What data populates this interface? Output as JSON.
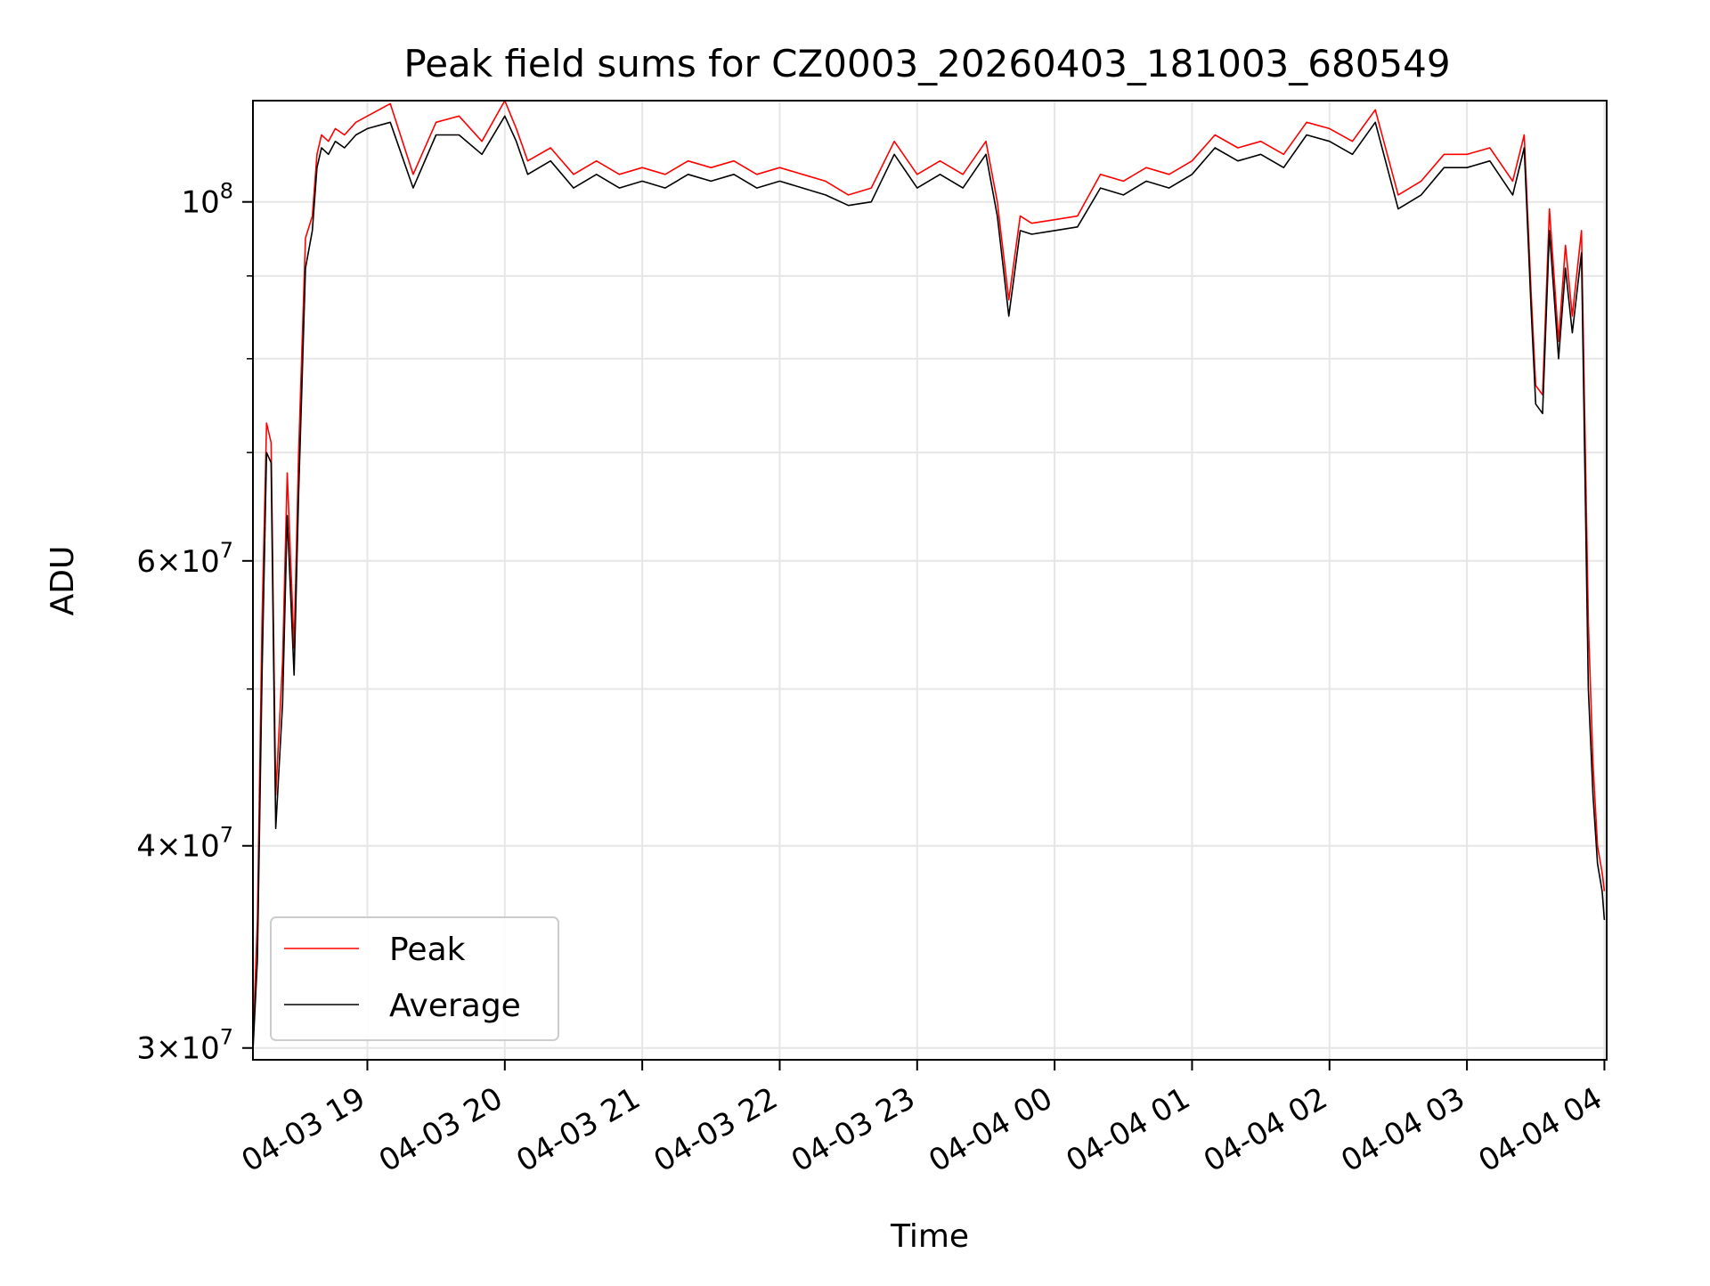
{
  "chart_data": {
    "type": "line",
    "title": "Peak field sums for CZ0003_20260403_181003_680549",
    "xlabel": "Time",
    "ylabel": "ADU",
    "yscale": "log",
    "ylim": [
      29500000,
      115500000
    ],
    "xlim": [
      "2026-04-03 18:10:03",
      "2026-04-04 04:01:00"
    ],
    "grid": true,
    "legend_position": "lower-left",
    "x_ticks": [
      {
        "t": "2026-04-03 19:00",
        "label": "04-03 19"
      },
      {
        "t": "2026-04-03 20:00",
        "label": "04-03 20"
      },
      {
        "t": "2026-04-03 21:00",
        "label": "04-03 21"
      },
      {
        "t": "2026-04-03 22:00",
        "label": "04-03 22"
      },
      {
        "t": "2026-04-03 23:00",
        "label": "04-03 23"
      },
      {
        "t": "2026-04-04 00:00",
        "label": "04-04 00"
      },
      {
        "t": "2026-04-04 01:00",
        "label": "04-04 01"
      },
      {
        "t": "2026-04-04 02:00",
        "label": "04-04 02"
      },
      {
        "t": "2026-04-04 03:00",
        "label": "04-04 03"
      },
      {
        "t": "2026-04-04 04:00",
        "label": "04-04 04"
      }
    ],
    "y_ticks": [
      {
        "value": 30000000,
        "mantissa": "3",
        "exp": "7"
      },
      {
        "value": 40000000,
        "mantissa": "4",
        "exp": "7"
      },
      {
        "value": 60000000,
        "mantissa": "6",
        "exp": "7"
      },
      {
        "value": 100000000,
        "mantissa": "",
        "exp": "8"
      }
    ],
    "y_minor_ticks": [
      50000000,
      70000000,
      80000000,
      90000000
    ],
    "series": [
      {
        "name": "Peak",
        "color": "#ff0000",
        "x": [
          "2026-04-03 18:10",
          "2026-04-03 18:12",
          "2026-04-03 18:14",
          "2026-04-03 18:16",
          "2026-04-03 18:18",
          "2026-04-03 18:20",
          "2026-04-03 18:23",
          "2026-04-03 18:25",
          "2026-04-03 18:28",
          "2026-04-03 18:30",
          "2026-04-03 18:33",
          "2026-04-03 18:36",
          "2026-04-03 18:38",
          "2026-04-03 18:40",
          "2026-04-03 18:43",
          "2026-04-03 18:46",
          "2026-04-03 18:50",
          "2026-04-03 18:55",
          "2026-04-03 19:00",
          "2026-04-03 19:10",
          "2026-04-03 19:20",
          "2026-04-03 19:30",
          "2026-04-03 19:40",
          "2026-04-03 19:50",
          "2026-04-03 20:00",
          "2026-04-03 20:05",
          "2026-04-03 20:10",
          "2026-04-03 20:20",
          "2026-04-03 20:30",
          "2026-04-03 20:40",
          "2026-04-03 20:50",
          "2026-04-03 21:00",
          "2026-04-03 21:10",
          "2026-04-03 21:20",
          "2026-04-03 21:30",
          "2026-04-03 21:40",
          "2026-04-03 21:50",
          "2026-04-03 22:00",
          "2026-04-03 22:10",
          "2026-04-03 22:20",
          "2026-04-03 22:30",
          "2026-04-03 22:40",
          "2026-04-03 22:50",
          "2026-04-03 23:00",
          "2026-04-03 23:10",
          "2026-04-03 23:20",
          "2026-04-03 23:30",
          "2026-04-03 23:35",
          "2026-04-03 23:40",
          "2026-04-03 23:45",
          "2026-04-03 23:50",
          "2026-04-04 00:00",
          "2026-04-04 00:10",
          "2026-04-04 00:20",
          "2026-04-04 00:30",
          "2026-04-04 00:40",
          "2026-04-04 00:50",
          "2026-04-04 01:00",
          "2026-04-04 01:10",
          "2026-04-04 01:20",
          "2026-04-04 01:30",
          "2026-04-04 01:40",
          "2026-04-04 01:50",
          "2026-04-04 02:00",
          "2026-04-04 02:10",
          "2026-04-04 02:20",
          "2026-04-04 02:30",
          "2026-04-04 02:40",
          "2026-04-04 02:50",
          "2026-04-04 03:00",
          "2026-04-04 03:10",
          "2026-04-04 03:20",
          "2026-04-04 03:25",
          "2026-04-04 03:28",
          "2026-04-04 03:30",
          "2026-04-04 03:33",
          "2026-04-04 03:36",
          "2026-04-04 03:40",
          "2026-04-04 03:43",
          "2026-04-04 03:46",
          "2026-04-04 03:50",
          "2026-04-04 03:53",
          "2026-04-04 03:55",
          "2026-04-04 03:57",
          "2026-04-04 03:59",
          "2026-04-04 04:00"
        ],
        "values": [
          30000000,
          36000000,
          55000000,
          73000000,
          71000000,
          43000000,
          52000000,
          68000000,
          53000000,
          70000000,
          95000000,
          98000000,
          107000000,
          110000000,
          109000000,
          111000000,
          110000000,
          112000000,
          113000000,
          115000000,
          104000000,
          112000000,
          113000000,
          109000000,
          115500000,
          111000000,
          106000000,
          108000000,
          104000000,
          106000000,
          104000000,
          105000000,
          104000000,
          106000000,
          105000000,
          106000000,
          104000000,
          105000000,
          104000000,
          103000000,
          101000000,
          102000000,
          109000000,
          104000000,
          106000000,
          104000000,
          109000000,
          100000000,
          87000000,
          98000000,
          97000000,
          97500000,
          98000000,
          104000000,
          103000000,
          105000000,
          104000000,
          106000000,
          110000000,
          108000000,
          109000000,
          107000000,
          112000000,
          111000000,
          109000000,
          114000000,
          101000000,
          103000000,
          107000000,
          107000000,
          108000000,
          103000000,
          110000000,
          88000000,
          77000000,
          76000000,
          99000000,
          82000000,
          94000000,
          85000000,
          96000000,
          55000000,
          45000000,
          40000000,
          38500000,
          37500000
        ]
      },
      {
        "name": "Average",
        "color": "#000000",
        "x": [
          "2026-04-03 18:10",
          "2026-04-03 18:12",
          "2026-04-03 18:14",
          "2026-04-03 18:16",
          "2026-04-03 18:18",
          "2026-04-03 18:20",
          "2026-04-03 18:23",
          "2026-04-03 18:25",
          "2026-04-03 18:28",
          "2026-04-03 18:30",
          "2026-04-03 18:33",
          "2026-04-03 18:36",
          "2026-04-03 18:38",
          "2026-04-03 18:40",
          "2026-04-03 18:43",
          "2026-04-03 18:46",
          "2026-04-03 18:50",
          "2026-04-03 18:55",
          "2026-04-03 19:00",
          "2026-04-03 19:10",
          "2026-04-03 19:20",
          "2026-04-03 19:30",
          "2026-04-03 19:40",
          "2026-04-03 19:50",
          "2026-04-03 20:00",
          "2026-04-03 20:05",
          "2026-04-03 20:10",
          "2026-04-03 20:20",
          "2026-04-03 20:30",
          "2026-04-03 20:40",
          "2026-04-03 20:50",
          "2026-04-03 21:00",
          "2026-04-03 21:10",
          "2026-04-03 21:20",
          "2026-04-03 21:30",
          "2026-04-03 21:40",
          "2026-04-03 21:50",
          "2026-04-03 22:00",
          "2026-04-03 22:10",
          "2026-04-03 22:20",
          "2026-04-03 22:30",
          "2026-04-03 22:40",
          "2026-04-03 22:50",
          "2026-04-03 23:00",
          "2026-04-03 23:10",
          "2026-04-03 23:20",
          "2026-04-03 23:30",
          "2026-04-03 23:35",
          "2026-04-03 23:40",
          "2026-04-03 23:45",
          "2026-04-03 23:50",
          "2026-04-04 00:00",
          "2026-04-04 00:10",
          "2026-04-04 00:20",
          "2026-04-04 00:30",
          "2026-04-04 00:40",
          "2026-04-04 00:50",
          "2026-04-04 01:00",
          "2026-04-04 01:10",
          "2026-04-04 01:20",
          "2026-04-04 01:30",
          "2026-04-04 01:40",
          "2026-04-04 01:50",
          "2026-04-04 02:00",
          "2026-04-04 02:10",
          "2026-04-04 02:20",
          "2026-04-04 02:30",
          "2026-04-04 02:40",
          "2026-04-04 02:50",
          "2026-04-04 03:00",
          "2026-04-04 03:10",
          "2026-04-04 03:20",
          "2026-04-04 03:25",
          "2026-04-04 03:28",
          "2026-04-04 03:30",
          "2026-04-04 03:33",
          "2026-04-04 03:36",
          "2026-04-04 03:40",
          "2026-04-04 03:43",
          "2026-04-04 03:46",
          "2026-04-04 03:50",
          "2026-04-04 03:53",
          "2026-04-04 03:55",
          "2026-04-04 03:57",
          "2026-04-04 03:59",
          "2026-04-04 04:00"
        ],
        "values": [
          29800000,
          34000000,
          51000000,
          70000000,
          69000000,
          41000000,
          49000000,
          64000000,
          51000000,
          66000000,
          91000000,
          96000000,
          105000000,
          108000000,
          107000000,
          109000000,
          108000000,
          110000000,
          111000000,
          112000000,
          102000000,
          110000000,
          110000000,
          107000000,
          113000000,
          109000000,
          104000000,
          106000000,
          102000000,
          104000000,
          102000000,
          103000000,
          102000000,
          104000000,
          103000000,
          104000000,
          102000000,
          103000000,
          102000000,
          101000000,
          99500000,
          100000000,
          107000000,
          102000000,
          104000000,
          102000000,
          107000000,
          98000000,
          85000000,
          96000000,
          95500000,
          96000000,
          96500000,
          102000000,
          101000000,
          103000000,
          102000000,
          104000000,
          108000000,
          106000000,
          107000000,
          105000000,
          110000000,
          109000000,
          107000000,
          112000000,
          99000000,
          101000000,
          105000000,
          105000000,
          106000000,
          101000000,
          108000000,
          86000000,
          75000000,
          74000000,
          96000000,
          80000000,
          91000000,
          83000000,
          93000000,
          50000000,
          43000000,
          39000000,
          37500000,
          36000000
        ]
      }
    ]
  }
}
